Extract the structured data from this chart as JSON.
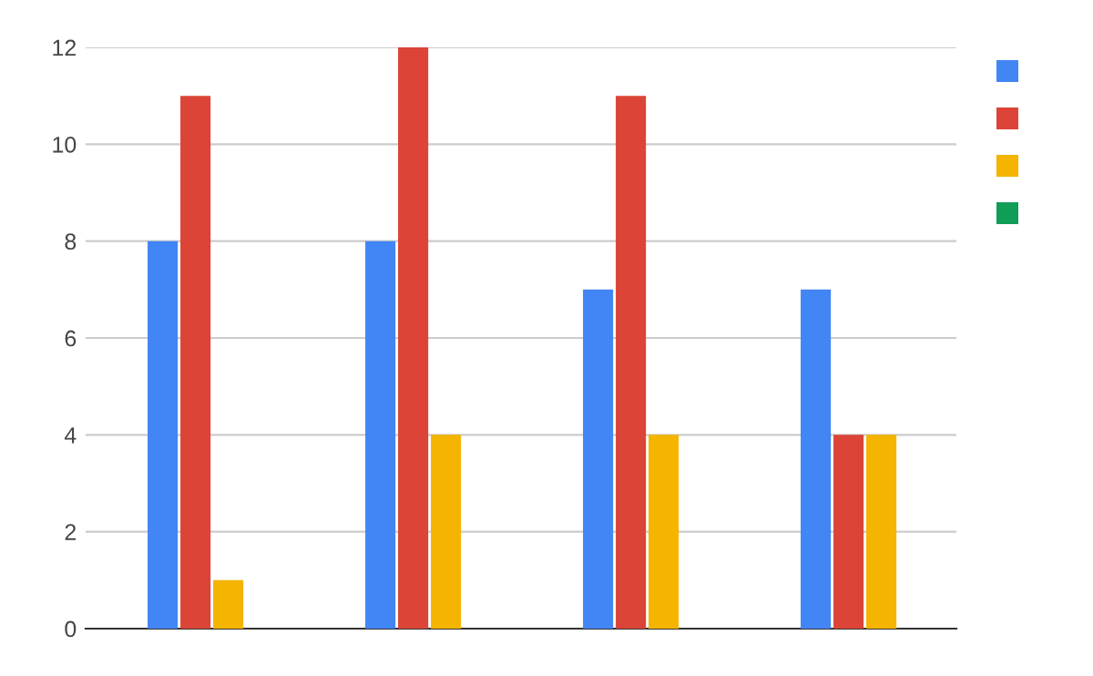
{
  "chart_data": {
    "type": "bar",
    "categories": [
      null,
      null,
      null,
      null
    ],
    "series": [
      {
        "color": "#4285f4",
        "values": [
          8,
          8,
          7,
          7
        ]
      },
      {
        "color": "#db4437",
        "values": [
          11,
          12,
          11,
          4
        ]
      },
      {
        "color": "#f4b400",
        "values": [
          1,
          4,
          4,
          4
        ]
      },
      {
        "color": "#0f9d58",
        "values": [
          null,
          null,
          null,
          null
        ]
      }
    ],
    "ylim": [
      0,
      12
    ],
    "yticks": [
      0,
      2,
      4,
      6,
      8,
      10,
      12
    ],
    "grid": "y"
  }
}
